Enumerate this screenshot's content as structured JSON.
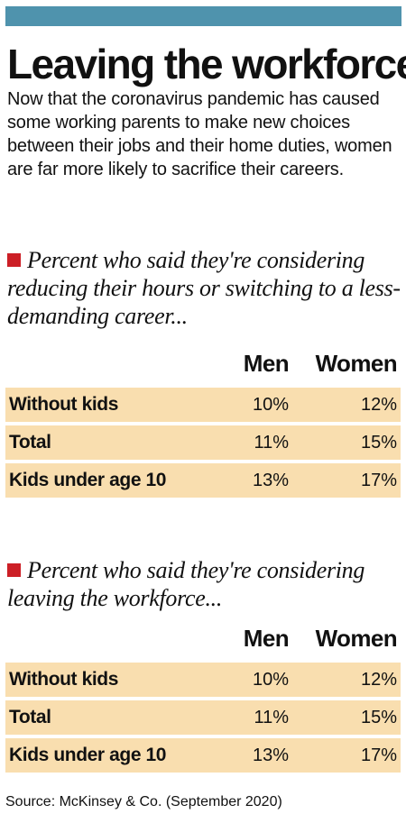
{
  "title": "Leaving the workforce",
  "intro": "Now that the coronavirus pandemic has caused some working parents to make new choices between their jobs and their home duties, women are far more likely to sacrifice their careers.",
  "accent_color": "#4f93ad",
  "marker_color": "#cc1f26",
  "row_color": "#f9deaf",
  "source": "Source: McKinsey & Co. (September 2020)",
  "chart_data": [
    {
      "type": "table",
      "title": "Percent who said they're considering reducing their hours or switching to a less-demanding career...",
      "columns": [
        "Men",
        "Women"
      ],
      "rows": [
        {
          "label": "Without kids",
          "men": "10%",
          "women": "12%"
        },
        {
          "label": "Total",
          "men": "11%",
          "women": "15%"
        },
        {
          "label": "Kids under age 10",
          "men": "13%",
          "women": "17%"
        }
      ]
    },
    {
      "type": "table",
      "title": "Percent who said they're considering leaving the workforce...",
      "columns": [
        "Men",
        "Women"
      ],
      "rows": [
        {
          "label": "Without kids",
          "men": "10%",
          "women": "12%"
        },
        {
          "label": "Total",
          "men": "11%",
          "women": "15%"
        },
        {
          "label": "Kids under age 10",
          "men": "13%",
          "women": "17%"
        }
      ]
    }
  ]
}
